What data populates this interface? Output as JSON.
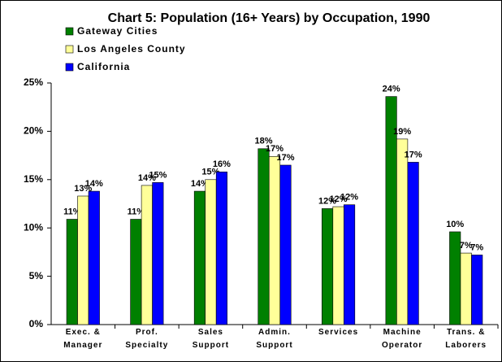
{
  "chart_data": {
    "type": "bar",
    "title": "Chart 5:  Population (16+ Years) by Occupation, 1990",
    "categories": [
      "Exec. & Manager",
      "Prof. Specialty",
      "Sales Support",
      "Admin. Support",
      "Services",
      "Machine Operator",
      "Trans. & Laborers"
    ],
    "series": [
      {
        "name": "Gateway Cities",
        "color": "#008000",
        "values": [
          10.9,
          10.9,
          13.8,
          18.2,
          12.0,
          23.6,
          9.6
        ],
        "value_labels": [
          "11%",
          "11%",
          "14%",
          "18%",
          "12%",
          "24%",
          "10%"
        ]
      },
      {
        "name": "Los Angeles County",
        "color": "#ffff99",
        "values": [
          13.3,
          14.4,
          15.0,
          17.4,
          12.2,
          19.2,
          7.4
        ],
        "value_labels": [
          "13%",
          "14%",
          "15%",
          "17%",
          "12%",
          "19%",
          "7%"
        ]
      },
      {
        "name": "California",
        "color": "#0000ff",
        "values": [
          13.8,
          14.7,
          15.8,
          16.5,
          12.4,
          16.8,
          7.2
        ],
        "value_labels": [
          "14%",
          "15%",
          "16%",
          "17%",
          "12%",
          "17%",
          "7%"
        ]
      }
    ],
    "ylim": [
      0,
      25
    ],
    "yticks": [
      {
        "value": 0,
        "label": "0%"
      },
      {
        "value": 5,
        "label": "5%"
      },
      {
        "value": 10,
        "label": "10%"
      },
      {
        "value": 15,
        "label": "15%"
      },
      {
        "value": 20,
        "label": "20%"
      },
      {
        "value": 25,
        "label": "25%"
      }
    ],
    "legend": "top-left"
  }
}
